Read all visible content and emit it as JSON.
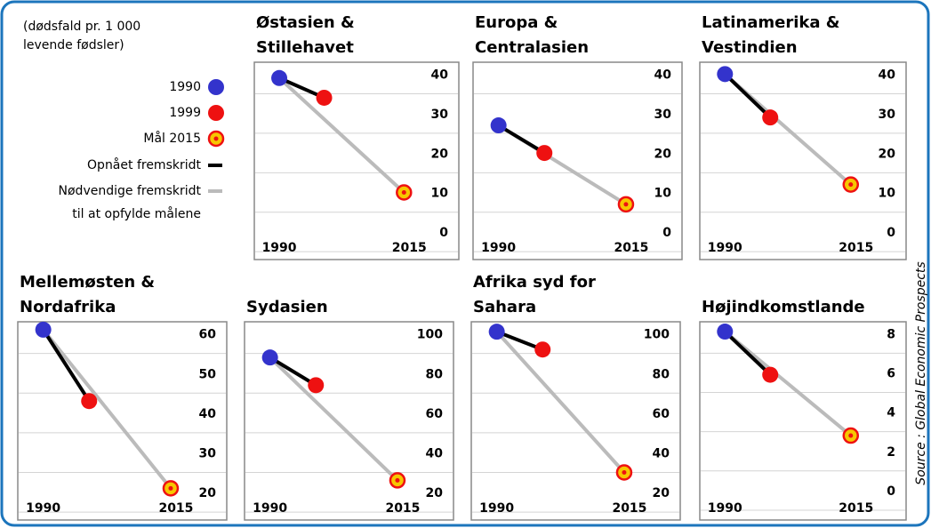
{
  "note": [
    "(dødsfald pr. 1 000",
    "levende fødsler)"
  ],
  "legend": [
    {
      "name": [
        "1990"
      ],
      "color": "#3333cc"
    },
    {
      "name": [
        "1999"
      ],
      "color": "#ee1111"
    },
    {
      "name": [
        "Mål 2015"
      ],
      "color": "#f7c600"
    },
    {
      "name": [
        "Opnået fremskridt"
      ],
      "color": "#000000"
    },
    {
      "name": [
        "Nødvendige fremskridt",
        "til at opfylde målene"
      ],
      "color": "#bbbbbb"
    }
  ],
  "source": "Source : Global Economic Prospects",
  "chart_data": [
    {
      "type": "line",
      "title": [
        "Østasien &",
        "Stillehavet"
      ],
      "x": [
        1990,
        1999,
        2015
      ],
      "values": [
        44,
        39,
        15
      ],
      "xlim": [
        1985,
        2026
      ],
      "xticks": [
        1990,
        2015
      ],
      "ylim": [
        -2,
        48
      ],
      "yticks": [
        0,
        10,
        20,
        30,
        40
      ],
      "grid": true
    },
    {
      "type": "line",
      "title": [
        "Europa &",
        "Centralasien"
      ],
      "x": [
        1990,
        1999,
        2015
      ],
      "values": [
        32,
        25,
        12
      ],
      "xlim": [
        1985,
        2026
      ],
      "xticks": [
        1990,
        2015
      ],
      "ylim": [
        -2,
        48
      ],
      "yticks": [
        0,
        10,
        20,
        30,
        40
      ],
      "grid": true
    },
    {
      "type": "line",
      "title": [
        "Latinamerika &",
        "Vestindien"
      ],
      "x": [
        1990,
        1999,
        2015
      ],
      "values": [
        45,
        34,
        17
      ],
      "xlim": [
        1985,
        2026
      ],
      "xticks": [
        1990,
        2015
      ],
      "ylim": [
        -2,
        48
      ],
      "yticks": [
        0,
        10,
        20,
        30,
        40
      ],
      "grid": true
    },
    {
      "type": "line",
      "title": [
        "Mellemøsten &",
        "Nordafrika"
      ],
      "x": [
        1990,
        1999,
        2015
      ],
      "values": [
        66,
        48,
        26
      ],
      "xlim": [
        1985,
        2026
      ],
      "xticks": [
        1990,
        2015
      ],
      "ylim": [
        18,
        68
      ],
      "yticks": [
        20,
        30,
        40,
        50,
        60
      ],
      "grid": true
    },
    {
      "type": "line",
      "title": [
        "Sydasien"
      ],
      "x": [
        1990,
        1999,
        2015
      ],
      "values": [
        98,
        84,
        36
      ],
      "xlim": [
        1985,
        2026
      ],
      "xticks": [
        1990,
        2015
      ],
      "ylim": [
        16,
        116
      ],
      "yticks": [
        20,
        40,
        60,
        80,
        100
      ],
      "grid": true
    },
    {
      "type": "line",
      "title": [
        "Afrika syd for",
        "Sahara"
      ],
      "x": [
        1990,
        1999,
        2015
      ],
      "values": [
        111,
        102,
        40
      ],
      "xlim": [
        1985,
        2026
      ],
      "xticks": [
        1990,
        2015
      ],
      "ylim": [
        16,
        116
      ],
      "yticks": [
        20,
        40,
        60,
        80,
        100
      ],
      "grid": true
    },
    {
      "type": "line",
      "title": [
        "Højindkomstlande"
      ],
      "x": [
        1990,
        1999,
        2015
      ],
      "values": [
        9.1,
        6.9,
        3.8
      ],
      "xlim": [
        1985,
        2026
      ],
      "xticks": [
        1990,
        2015
      ],
      "ylim": [
        -0.5,
        9.6
      ],
      "yticks": [
        0,
        2,
        4,
        6,
        8
      ],
      "grid": true
    }
  ]
}
